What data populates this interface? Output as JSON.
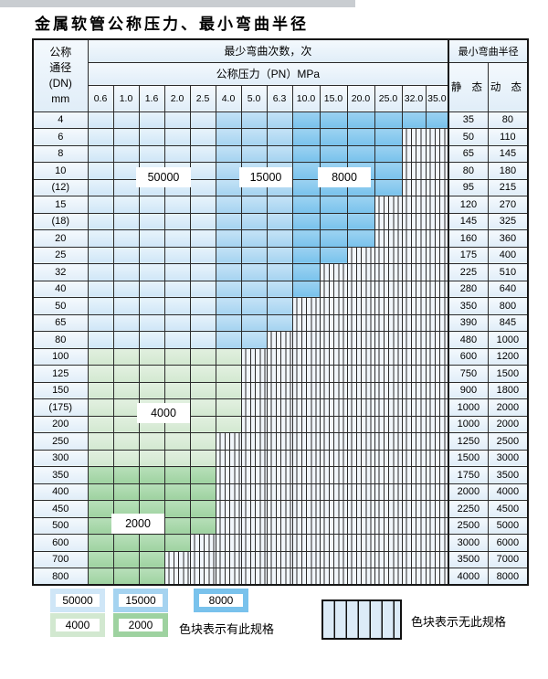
{
  "title": "金属软管公称压力、最小弯曲半径",
  "table": {
    "dn_header_lines": [
      "公称",
      "通径",
      "(DN)",
      "mm"
    ],
    "cycles_header": "最少弯曲次数，次",
    "pressure_header": "公称压力（PN）MPa",
    "pressures": [
      "0.6",
      "1.0",
      "1.6",
      "2.0",
      "2.5",
      "4.0",
      "5.0",
      "6.3",
      "10.0",
      "15.0",
      "20.0",
      "25.0",
      "32.0",
      "35.0"
    ],
    "radius_header": "最小弯曲半径",
    "static_header": "静 态",
    "dynamic_header": "动 态",
    "cycle_value_regions": {
      "blue_rows_by_pressure": {
        "0.6-2.5": 50000,
        "4.0-6.3": 15000,
        "10.0-35.0": 8000
      },
      "green_rows_by_dn": {
        "100-300": 4000,
        "350-800": 2000
      }
    },
    "rows": [
      {
        "dn": "4",
        "colored_count": 14,
        "band": "blue",
        "static": "35",
        "dynamic": "80"
      },
      {
        "dn": "6",
        "colored_count": 12,
        "band": "blue",
        "static": "50",
        "dynamic": "110"
      },
      {
        "dn": "8",
        "colored_count": 12,
        "band": "blue",
        "static": "65",
        "dynamic": "145"
      },
      {
        "dn": "10",
        "colored_count": 12,
        "band": "blue",
        "static": "80",
        "dynamic": "180"
      },
      {
        "dn": "(12)",
        "colored_count": 12,
        "band": "blue",
        "static": "95",
        "dynamic": "215"
      },
      {
        "dn": "15",
        "colored_count": 11,
        "band": "blue",
        "static": "120",
        "dynamic": "270"
      },
      {
        "dn": "(18)",
        "colored_count": 11,
        "band": "blue",
        "static": "145",
        "dynamic": "325"
      },
      {
        "dn": "20",
        "colored_count": 11,
        "band": "blue",
        "static": "160",
        "dynamic": "360"
      },
      {
        "dn": "25",
        "colored_count": 10,
        "band": "blue",
        "static": "175",
        "dynamic": "400"
      },
      {
        "dn": "32",
        "colored_count": 9,
        "band": "blue",
        "static": "225",
        "dynamic": "510"
      },
      {
        "dn": "40",
        "colored_count": 9,
        "band": "blue",
        "static": "280",
        "dynamic": "640"
      },
      {
        "dn": "50",
        "colored_count": 8,
        "band": "blue",
        "static": "350",
        "dynamic": "800"
      },
      {
        "dn": "65",
        "colored_count": 8,
        "band": "blue",
        "static": "390",
        "dynamic": "845"
      },
      {
        "dn": "80",
        "colored_count": 7,
        "band": "blue",
        "static": "480",
        "dynamic": "1000"
      },
      {
        "dn": "100",
        "colored_count": 6,
        "band": "green4000",
        "static": "600",
        "dynamic": "1200"
      },
      {
        "dn": "125",
        "colored_count": 6,
        "band": "green4000",
        "static": "750",
        "dynamic": "1500"
      },
      {
        "dn": "150",
        "colored_count": 6,
        "band": "green4000",
        "static": "900",
        "dynamic": "1800"
      },
      {
        "dn": "(175)",
        "colored_count": 6,
        "band": "green4000",
        "static": "1000",
        "dynamic": "2000"
      },
      {
        "dn": "200",
        "colored_count": 6,
        "band": "green4000",
        "static": "1000",
        "dynamic": "2000"
      },
      {
        "dn": "250",
        "colored_count": 5,
        "band": "green4000",
        "static": "1250",
        "dynamic": "2500"
      },
      {
        "dn": "300",
        "colored_count": 5,
        "band": "green4000",
        "static": "1500",
        "dynamic": "3000"
      },
      {
        "dn": "350",
        "colored_count": 5,
        "band": "green2000",
        "static": "1750",
        "dynamic": "3500"
      },
      {
        "dn": "400",
        "colored_count": 5,
        "band": "green2000",
        "static": "2000",
        "dynamic": "4000"
      },
      {
        "dn": "450",
        "colored_count": 5,
        "band": "green2000",
        "static": "2250",
        "dynamic": "4500"
      },
      {
        "dn": "500",
        "colored_count": 5,
        "band": "green2000",
        "static": "2500",
        "dynamic": "5000"
      },
      {
        "dn": "600",
        "colored_count": 4,
        "band": "green2000",
        "static": "3000",
        "dynamic": "6000"
      },
      {
        "dn": "700",
        "colored_count": 3,
        "band": "green2000",
        "static": "3500",
        "dynamic": "7000"
      },
      {
        "dn": "800",
        "colored_count": 3,
        "band": "green2000",
        "static": "4000",
        "dynamic": "8000"
      }
    ],
    "overlays": {
      "b50000": "50000",
      "b15000": "15000",
      "b8000": "8000",
      "g4000": "4000",
      "g2000": "2000"
    }
  },
  "legend": {
    "items": [
      {
        "label": "50000",
        "color": "#cfe6f7"
      },
      {
        "label": "15000",
        "color": "#a5d3f0"
      },
      {
        "label": "8000",
        "color": "#79c2ec"
      },
      {
        "label": "4000",
        "color": "#d2e8d0"
      },
      {
        "label": "2000",
        "color": "#9ed2a0"
      }
    ],
    "has_spec_text": "色块表示有此规格",
    "no_spec_text": "色块表示无此规格"
  }
}
